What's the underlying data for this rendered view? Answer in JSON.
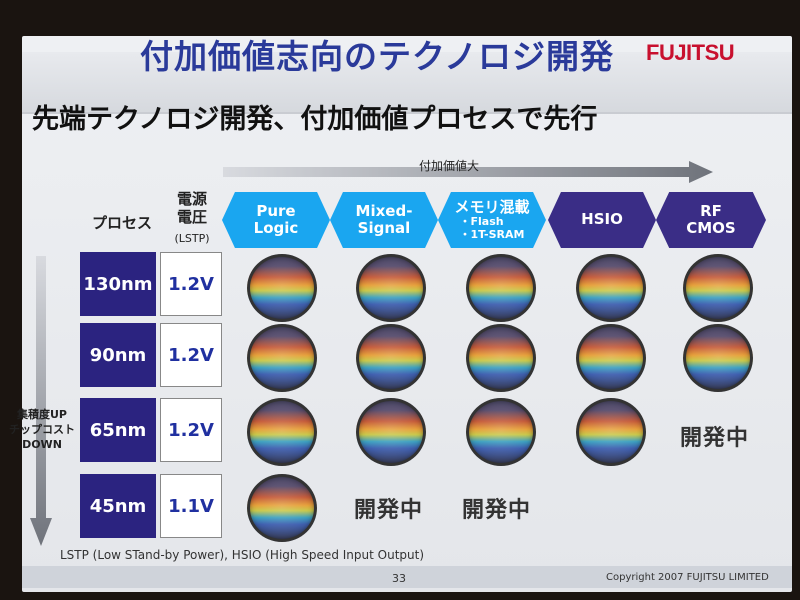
{
  "header": {
    "title": "付加価値志向のテクノロジ開発",
    "brand": "FUJITSU"
  },
  "subtitle": "先端テクノロジ開発、付加価値プロセスで先行",
  "value_arrow_label": "付加価値大",
  "row_header": {
    "process_label": "プロセス",
    "voltage_label": "電源\n電圧",
    "voltage_note": "(LSTP)"
  },
  "columns": [
    {
      "main": "Pure\nLogic",
      "sub": "",
      "style": "light"
    },
    {
      "main": "Mixed-\nSignal",
      "sub": "",
      "style": "light"
    },
    {
      "main": "メモリ混載",
      "sub": "・Flash\n・1T-SRAM",
      "style": "light"
    },
    {
      "main": "HSIO",
      "sub": "",
      "style": "dark"
    },
    {
      "main": "RF\nCMOS",
      "sub": "",
      "style": "dark"
    }
  ],
  "rows": [
    {
      "process": "130nm",
      "voltage": "1.2V"
    },
    {
      "process": "90nm",
      "voltage": "1.2V"
    },
    {
      "process": "65nm",
      "voltage": "1.2V"
    },
    {
      "process": "45nm",
      "voltage": "1.1V"
    }
  ],
  "matrix_status": {
    "available": "wafer",
    "in_development": "開発中"
  },
  "side_arrow_label": "集積度UP\nチップコスト\nDOWN",
  "footnote": "LSTP (Low STand-by Power), HSIO (High Speed Input Output)",
  "page_number": "33",
  "copyright": "Copyright 2007 FUJITSU LIMITED",
  "colors": {
    "title": "#2a3a9a",
    "brand": "#c8102e",
    "process_box": "#2b2380",
    "hex_light": "#1aa6f0",
    "hex_dark": "#3a2d86"
  }
}
